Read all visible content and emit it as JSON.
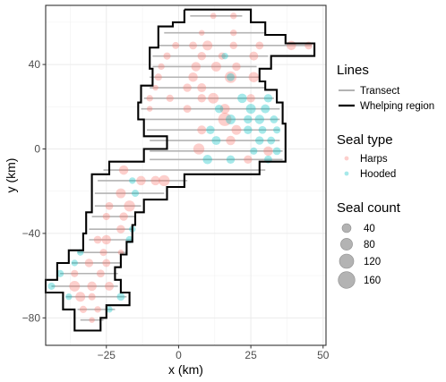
{
  "chart_data": {
    "type": "scatter",
    "title": "",
    "xlabel": "x (km)",
    "ylabel": "y (km)",
    "xlim": [
      -46,
      51
    ],
    "ylim": [
      -93,
      68
    ],
    "x_ticks": [
      -25,
      0,
      25,
      50
    ],
    "x_tick_labels": [
      "−25",
      "0",
      "25",
      "50"
    ],
    "y_ticks": [
      -80,
      -40,
      0,
      40
    ],
    "y_tick_labels": [
      "−80",
      "−40",
      "0",
      "40"
    ],
    "grid": true,
    "legend": {
      "placement": "right",
      "lines_title": "Lines",
      "lines_items": [
        {
          "label": "Transect",
          "color": "#b3b3b3"
        },
        {
          "label": "Whelping region",
          "color": "#000000"
        }
      ],
      "type_title": "Seal type",
      "type_items": [
        {
          "label": "Harps",
          "color": "#F8766D"
        },
        {
          "label": "Hooded",
          "color": "#00BFC4"
        }
      ],
      "size_title": "Seal count",
      "size_items": [
        {
          "label": "40",
          "value": 40
        },
        {
          "label": "80",
          "value": 80
        },
        {
          "label": "120",
          "value": 120
        },
        {
          "label": "160",
          "value": 160
        }
      ]
    },
    "whelping_region": [
      [
        2,
        66
      ],
      [
        25,
        66
      ],
      [
        25,
        60
      ],
      [
        30,
        60
      ],
      [
        30,
        54
      ],
      [
        37,
        54
      ],
      [
        37,
        50
      ],
      [
        47,
        50
      ],
      [
        47,
        44
      ],
      [
        32,
        44
      ],
      [
        32,
        38
      ],
      [
        28,
        38
      ],
      [
        28,
        32
      ],
      [
        30,
        32
      ],
      [
        30,
        28
      ],
      [
        34,
        28
      ],
      [
        34,
        22
      ],
      [
        36,
        22
      ],
      [
        36,
        12
      ],
      [
        37,
        12
      ],
      [
        37,
        -6
      ],
      [
        28,
        -6
      ],
      [
        28,
        -12
      ],
      [
        2,
        -12
      ],
      [
        2,
        -18
      ],
      [
        -4,
        -18
      ],
      [
        -4,
        -24
      ],
      [
        -12,
        -24
      ],
      [
        -12,
        -30
      ],
      [
        -15,
        -30
      ],
      [
        -15,
        -36
      ],
      [
        -16,
        -36
      ],
      [
        -16,
        -44
      ],
      [
        -18,
        -44
      ],
      [
        -18,
        -50
      ],
      [
        -20,
        -50
      ],
      [
        -20,
        -56
      ],
      [
        -22,
        -56
      ],
      [
        -22,
        -62
      ],
      [
        -20,
        -62
      ],
      [
        -20,
        -68
      ],
      [
        -17,
        -68
      ],
      [
        -17,
        -74
      ],
      [
        -25,
        -74
      ],
      [
        -25,
        -80
      ],
      [
        -27,
        -80
      ],
      [
        -27,
        -86
      ],
      [
        -36,
        -86
      ],
      [
        -36,
        -76
      ],
      [
        -40,
        -76
      ],
      [
        -40,
        -68
      ],
      [
        -46,
        -68
      ],
      [
        -46,
        -62
      ],
      [
        -42,
        -62
      ],
      [
        -42,
        -54
      ],
      [
        -38,
        -54
      ],
      [
        -38,
        -48
      ],
      [
        -33,
        -48
      ],
      [
        -33,
        -40
      ],
      [
        -32,
        -40
      ],
      [
        -32,
        -30
      ],
      [
        -30,
        -30
      ],
      [
        -30,
        -20
      ],
      [
        -30,
        -12
      ],
      [
        -24,
        -12
      ],
      [
        -24,
        -6
      ],
      [
        -12,
        -6
      ],
      [
        -12,
        0
      ],
      [
        -4,
        0
      ],
      [
        -4,
        6
      ],
      [
        -12,
        6
      ],
      [
        -12,
        14
      ],
      [
        -14,
        14
      ],
      [
        -14,
        22
      ],
      [
        -13,
        22
      ],
      [
        -13,
        30
      ],
      [
        -9,
        30
      ],
      [
        -9,
        38
      ],
      [
        -10,
        38
      ],
      [
        -10,
        48
      ],
      [
        -7,
        48
      ],
      [
        -7,
        56
      ],
      [
        -7,
        58
      ],
      [
        -2,
        58
      ],
      [
        -2,
        60
      ],
      [
        2,
        60
      ],
      [
        2,
        66
      ]
    ],
    "transects": [
      {
        "y": 63,
        "x1": 4,
        "x2": 22
      },
      {
        "y": 55,
        "x1": -5,
        "x2": 30
      },
      {
        "y": 49,
        "x1": -7,
        "x2": 46
      },
      {
        "y": 44,
        "x1": -9,
        "x2": 31
      },
      {
        "y": 39,
        "x1": -9,
        "x2": 27
      },
      {
        "y": 34,
        "x1": -10,
        "x2": 28
      },
      {
        "y": 29,
        "x1": -10,
        "x2": 30
      },
      {
        "y": 24,
        "x1": -12,
        "x2": 33
      },
      {
        "y": 19,
        "x1": -13,
        "x2": 35
      },
      {
        "y": 14,
        "x1": -12,
        "x2": 35
      },
      {
        "y": 9,
        "x1": -11,
        "x2": 35
      },
      {
        "y": 4,
        "x1": -10,
        "x2": 35
      },
      {
        "y": -1,
        "x1": -10,
        "x2": 36
      },
      {
        "y": -5,
        "x1": -10,
        "x2": 36
      },
      {
        "y": -10,
        "x1": -26,
        "x2": 30
      },
      {
        "y": -15,
        "x1": -28,
        "x2": 3
      },
      {
        "y": -21,
        "x1": -29,
        "x2": -5
      },
      {
        "y": -27,
        "x1": -29,
        "x2": -13
      },
      {
        "y": -32,
        "x1": -30,
        "x2": -15
      },
      {
        "y": -38,
        "x1": -31,
        "x2": -16
      },
      {
        "y": -43,
        "x1": -31,
        "x2": -16
      },
      {
        "y": -49,
        "x1": -35,
        "x2": -18
      },
      {
        "y": -54,
        "x1": -37,
        "x2": -20
      },
      {
        "y": -59,
        "x1": -41,
        "x2": -21
      },
      {
        "y": -65,
        "x1": -44,
        "x2": -21
      },
      {
        "y": -70,
        "x1": -39,
        "x2": -18
      },
      {
        "y": -76,
        "x1": -35,
        "x2": -22
      },
      {
        "y": -81,
        "x1": -34,
        "x2": -26
      }
    ],
    "series": [
      {
        "name": "Harps",
        "points": [
          [
            12,
            63,
            12
          ],
          [
            19,
            63,
            15
          ],
          [
            8,
            55,
            10
          ],
          [
            19,
            55,
            15
          ],
          [
            -1,
            49,
            18
          ],
          [
            5,
            49,
            25
          ],
          [
            10,
            49,
            45
          ],
          [
            19,
            49,
            22
          ],
          [
            28,
            49,
            25
          ],
          [
            39,
            49,
            40
          ],
          [
            45,
            49,
            25
          ],
          [
            -4,
            44,
            20
          ],
          [
            8,
            44,
            30
          ],
          [
            15,
            44,
            20
          ],
          [
            26,
            44,
            35
          ],
          [
            -6,
            39,
            15
          ],
          [
            6,
            39,
            40
          ],
          [
            13,
            39,
            45
          ],
          [
            20,
            39,
            30
          ],
          [
            -7,
            34,
            20
          ],
          [
            5,
            34,
            40
          ],
          [
            18,
            34,
            70
          ],
          [
            26,
            34,
            50
          ],
          [
            -8,
            29,
            10
          ],
          [
            3,
            29,
            30
          ],
          [
            8,
            29,
            35
          ],
          [
            -10,
            24,
            15
          ],
          [
            -3,
            24,
            20
          ],
          [
            8,
            24,
            30
          ],
          [
            12,
            24,
            55
          ],
          [
            25,
            24,
            30
          ],
          [
            -10,
            19,
            10
          ],
          [
            3,
            19,
            25
          ],
          [
            16,
            19,
            45
          ],
          [
            16,
            14,
            95
          ],
          [
            8,
            9,
            35
          ],
          [
            20,
            9,
            45
          ],
          [
            7,
            0,
            60
          ],
          [
            18,
            4,
            40
          ],
          [
            31,
            -1,
            40
          ],
          [
            24,
            -5,
            30
          ],
          [
            -19,
            -10,
            40
          ],
          [
            -13,
            -15,
            40
          ],
          [
            -5,
            -15,
            60
          ],
          [
            -8,
            -15,
            40
          ],
          [
            -20,
            -21,
            45
          ],
          [
            -17,
            -27,
            60
          ],
          [
            -24,
            -27,
            25
          ],
          [
            -19,
            -32,
            30
          ],
          [
            -25,
            -32,
            20
          ],
          [
            -20,
            -38,
            30
          ],
          [
            -25,
            -43,
            40
          ],
          [
            -28,
            -43,
            25
          ],
          [
            -20,
            -49,
            10
          ],
          [
            -26,
            -49,
            20
          ],
          [
            -25,
            -54,
            25
          ],
          [
            -31,
            -54,
            30
          ],
          [
            -27,
            -59,
            25
          ],
          [
            -36,
            -59,
            20
          ],
          [
            -30,
            -65,
            40
          ],
          [
            -36,
            -65,
            55
          ],
          [
            -24,
            -65,
            35
          ],
          [
            -34,
            -70,
            45
          ],
          [
            -30,
            -70,
            20
          ],
          [
            -33,
            -76,
            20
          ],
          [
            -28,
            -76,
            15
          ],
          [
            -30,
            -81,
            10
          ]
        ]
      },
      {
        "name": "Hooded",
        "points": [
          [
            16,
            44,
            15
          ],
          [
            18,
            34,
            25
          ],
          [
            22,
            24,
            40
          ],
          [
            31,
            24,
            30
          ],
          [
            14,
            19,
            30
          ],
          [
            25,
            19,
            45
          ],
          [
            30,
            19,
            35
          ],
          [
            18,
            14,
            45
          ],
          [
            24,
            14,
            30
          ],
          [
            28,
            14,
            40
          ],
          [
            33,
            14,
            25
          ],
          [
            11,
            9,
            30
          ],
          [
            24,
            9,
            30
          ],
          [
            29,
            9,
            25
          ],
          [
            34,
            9,
            20
          ],
          [
            13,
            4,
            35
          ],
          [
            28,
            4,
            30
          ],
          [
            32,
            4,
            25
          ],
          [
            26,
            -1,
            20
          ],
          [
            34,
            -1,
            25
          ],
          [
            10,
            -5,
            40
          ],
          [
            18,
            -5,
            30
          ],
          [
            31,
            -5,
            25
          ],
          [
            -16,
            -15,
            15
          ],
          [
            -15,
            -21,
            20
          ],
          [
            -16,
            -38,
            15
          ],
          [
            -17,
            -43,
            20
          ],
          [
            -34,
            -49,
            15
          ],
          [
            -36,
            -54,
            15
          ],
          [
            -41,
            -59,
            20
          ],
          [
            -44,
            -65,
            20
          ],
          [
            -38,
            -70,
            15
          ],
          [
            -20,
            -70,
            25
          ],
          [
            -24,
            -76,
            15
          ]
        ]
      }
    ]
  }
}
